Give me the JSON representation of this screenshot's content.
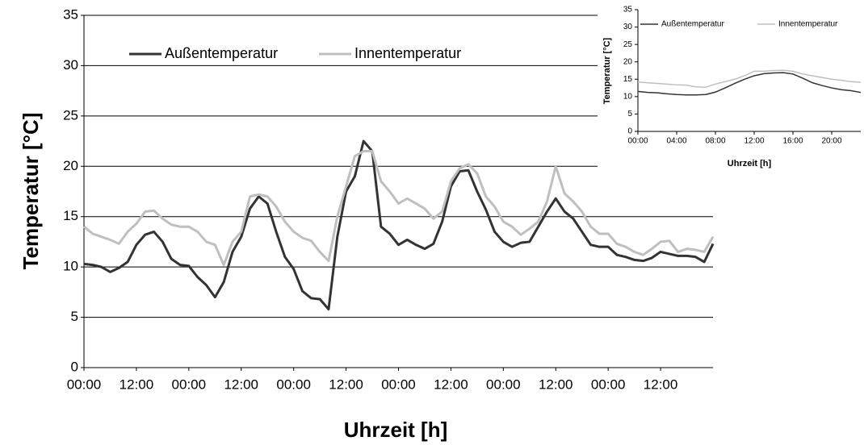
{
  "chart_data": [
    {
      "type": "line",
      "xlabel": "Uhrzeit [h]",
      "ylabel": "Temperatur [°C]",
      "categories": [
        "00:00",
        null,
        null,
        null,
        null,
        null,
        "12:00",
        null,
        null,
        null,
        null,
        null,
        "00:00",
        null,
        null,
        null,
        null,
        null,
        "12:00",
        null,
        null,
        null,
        null,
        null,
        "00:00",
        null,
        null,
        null,
        null,
        null,
        "12:00",
        null,
        null,
        null,
        null,
        null,
        "00:00",
        null,
        null,
        null,
        null,
        null,
        "12:00",
        null,
        null,
        null,
        null,
        null,
        "00:00",
        null,
        null,
        null,
        null,
        null,
        "12:00",
        null,
        null,
        null,
        null,
        null,
        "00:00",
        null,
        null,
        null,
        null,
        null,
        "12:00",
        null,
        null,
        null,
        null,
        null,
        null
      ],
      "series": [
        {
          "name": "Außentemperatur",
          "color": "#333333",
          "values": [
            10.3,
            10.2,
            10.0,
            9.5,
            9.9,
            10.5,
            12.2,
            13.2,
            13.5,
            12.5,
            10.8,
            10.2,
            10.1,
            9.0,
            8.2,
            7.0,
            8.5,
            11.5,
            13.0,
            15.8,
            17.0,
            16.3,
            13.5,
            11.0,
            9.8,
            7.6,
            6.9,
            6.8,
            5.8,
            13.0,
            17.5,
            19.0,
            22.5,
            21.5,
            14.0,
            13.3,
            12.2,
            12.7,
            12.2,
            11.8,
            12.3,
            14.5,
            18.0,
            19.5,
            19.6,
            17.5,
            15.7,
            13.5,
            12.5,
            12.0,
            12.4,
            12.5,
            14.0,
            15.5,
            16.8,
            15.5,
            14.8,
            13.5,
            12.2,
            12.0,
            12.0,
            11.2,
            11.0,
            10.7,
            10.6,
            10.9,
            11.5,
            11.3,
            11.1,
            11.1,
            11.0,
            10.5,
            12.3
          ]
        },
        {
          "name": "Innentemperatur",
          "color": "#bfbfbf",
          "values": [
            14.0,
            13.3,
            13.0,
            12.7,
            12.3,
            13.5,
            14.3,
            15.5,
            15.6,
            14.8,
            14.2,
            14.0,
            14.0,
            13.5,
            12.5,
            12.2,
            10.2,
            12.5,
            13.5,
            17.0,
            17.2,
            17.0,
            16.0,
            14.5,
            13.5,
            12.9,
            12.6,
            11.5,
            10.6,
            15.0,
            18.0,
            21.0,
            21.5,
            21.5,
            18.5,
            17.5,
            16.3,
            16.8,
            16.3,
            15.8,
            14.8,
            15.5,
            18.5,
            19.8,
            20.2,
            19.3,
            17.0,
            16.0,
            14.5,
            14.0,
            13.2,
            13.8,
            14.5,
            16.5,
            20.0,
            17.3,
            16.5,
            15.5,
            14.0,
            13.3,
            13.3,
            12.3,
            12.0,
            11.5,
            11.2,
            11.8,
            12.5,
            12.6,
            11.5,
            11.8,
            11.7,
            11.5,
            13.0
          ]
        }
      ],
      "ylim": [
        0,
        35
      ],
      "yticks": [
        0,
        5,
        10,
        15,
        20,
        25,
        30,
        35
      ],
      "grid": true,
      "legend": "top"
    },
    {
      "type": "line",
      "xlabel": "Uhrzeit [h]",
      "ylabel": "Temperatur [°C]",
      "categories": [
        "00:00",
        null,
        null,
        null,
        "04:00",
        null,
        null,
        null,
        "08:00",
        null,
        null,
        null,
        "12:00",
        null,
        null,
        null,
        "16:00",
        null,
        null,
        null,
        "20:00",
        null,
        null,
        null
      ],
      "series": [
        {
          "name": "Außentemperatur",
          "color": "#333333",
          "values": [
            11.5,
            11.2,
            11.1,
            10.8,
            10.6,
            10.5,
            10.5,
            10.6,
            11.3,
            12.5,
            13.8,
            15.0,
            16.0,
            16.6,
            16.8,
            16.9,
            16.5,
            15.3,
            14.0,
            13.2,
            12.5,
            12.0,
            11.7,
            11.2
          ]
        },
        {
          "name": "Innentemperatur",
          "color": "#bfbfbf",
          "values": [
            14.2,
            14.0,
            13.8,
            13.6,
            13.4,
            13.3,
            12.8,
            12.7,
            13.6,
            14.3,
            15.0,
            16.0,
            17.3,
            17.3,
            17.5,
            17.6,
            17.3,
            16.5,
            16.0,
            15.5,
            15.0,
            14.7,
            14.3,
            14.1
          ]
        }
      ],
      "ylim": [
        0,
        35
      ],
      "yticks": [
        0,
        5,
        10,
        15,
        20,
        25,
        30,
        35
      ],
      "grid": false,
      "legend": "top"
    }
  ]
}
